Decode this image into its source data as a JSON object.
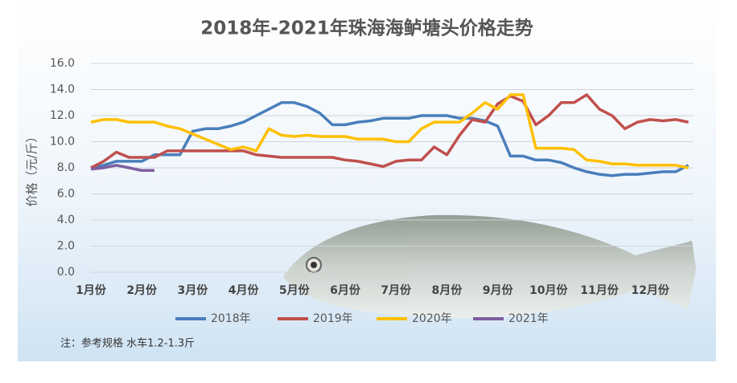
{
  "chart_data": {
    "type": "line",
    "title": "2018年-2021年珠海海鲈塘头价格走势",
    "y_label": "价格（元/斤）",
    "note": "注：参考规格  水车1.2-1.3斤",
    "categories": [
      "1月份",
      null,
      null,
      null,
      "2月份",
      null,
      null,
      null,
      "3月份",
      null,
      null,
      null,
      "4月份",
      null,
      null,
      null,
      "5月份",
      null,
      null,
      null,
      "6月份",
      null,
      null,
      null,
      "7月份",
      null,
      null,
      null,
      "8月份",
      null,
      null,
      null,
      "9月份",
      null,
      null,
      null,
      "10月份",
      null,
      null,
      null,
      "11月份",
      null,
      null,
      null,
      "12月份",
      null,
      null,
      null
    ],
    "series": [
      {
        "name": "2018年",
        "color": "#4a7ebb",
        "values": [
          8.0,
          8.2,
          8.5,
          8.5,
          8.5,
          9.0,
          9.0,
          9.0,
          10.8,
          11.0,
          11.0,
          11.2,
          11.5,
          12.0,
          12.5,
          13.0,
          13.0,
          12.7,
          12.2,
          11.3,
          11.3,
          11.5,
          11.6,
          11.8,
          11.8,
          11.8,
          12.0,
          12.0,
          12.0,
          11.8,
          11.8,
          11.6,
          11.2,
          8.9,
          8.9,
          8.6,
          8.6,
          8.4,
          8.0,
          7.7,
          7.5,
          7.4,
          7.5,
          7.5,
          7.6,
          7.7,
          7.7,
          8.2
        ]
      },
      {
        "name": "2019年",
        "color": "#c0504d",
        "values": [
          8.0,
          8.5,
          9.2,
          8.8,
          8.8,
          8.8,
          9.3,
          9.3,
          9.3,
          9.3,
          9.3,
          9.3,
          9.3,
          9.0,
          8.9,
          8.8,
          8.8,
          8.8,
          8.8,
          8.8,
          8.6,
          8.5,
          8.3,
          8.1,
          8.5,
          8.6,
          8.6,
          9.6,
          9.0,
          10.5,
          11.7,
          11.5,
          12.9,
          13.5,
          13.1,
          11.3,
          12.0,
          13.0,
          13.0,
          13.6,
          12.5,
          12.0,
          11.0,
          11.5,
          11.7,
          11.6,
          11.7,
          11.5
        ]
      },
      {
        "name": "2020年",
        "color": "#ffc000",
        "values": [
          11.5,
          11.7,
          11.7,
          11.5,
          11.5,
          11.5,
          11.2,
          11.0,
          10.6,
          10.2,
          9.8,
          9.4,
          9.6,
          9.3,
          11.0,
          10.5,
          10.4,
          10.5,
          10.4,
          10.4,
          10.4,
          10.2,
          10.2,
          10.2,
          10.0,
          10.0,
          11.0,
          11.5,
          11.5,
          11.5,
          12.2,
          13.0,
          12.5,
          13.6,
          13.6,
          9.5,
          9.5,
          9.5,
          9.4,
          8.6,
          8.5,
          8.3,
          8.3,
          8.2,
          8.2,
          8.2,
          8.2,
          8.0
        ]
      },
      {
        "name": "2021年",
        "color": "#7f5fa0",
        "values": [
          7.9,
          8.0,
          8.2,
          8.0,
          7.8,
          7.8,
          null,
          null,
          null,
          null,
          null,
          null,
          null,
          null,
          null,
          null,
          null,
          null,
          null,
          null,
          null,
          null,
          null,
          null,
          null,
          null,
          null,
          null,
          null,
          null,
          null,
          null,
          null,
          null,
          null,
          null,
          null,
          null,
          null,
          null,
          null,
          null,
          null,
          null,
          null,
          null,
          null,
          null
        ]
      }
    ],
    "ylim": [
      0,
      16
    ],
    "yticks": [
      {
        "value": 0,
        "label": "0.0"
      },
      {
        "value": 2,
        "label": "2.0"
      },
      {
        "value": 4,
        "label": "4.0"
      },
      {
        "value": 6,
        "label": "6.0"
      },
      {
        "value": 8,
        "label": "8.0"
      },
      {
        "value": 10,
        "label": "10.0"
      },
      {
        "value": 12,
        "label": "12.0"
      },
      {
        "value": 14,
        "label": "14.0"
      },
      {
        "value": 16,
        "label": "16.0"
      }
    ],
    "grid": true,
    "legend": "bottom"
  }
}
